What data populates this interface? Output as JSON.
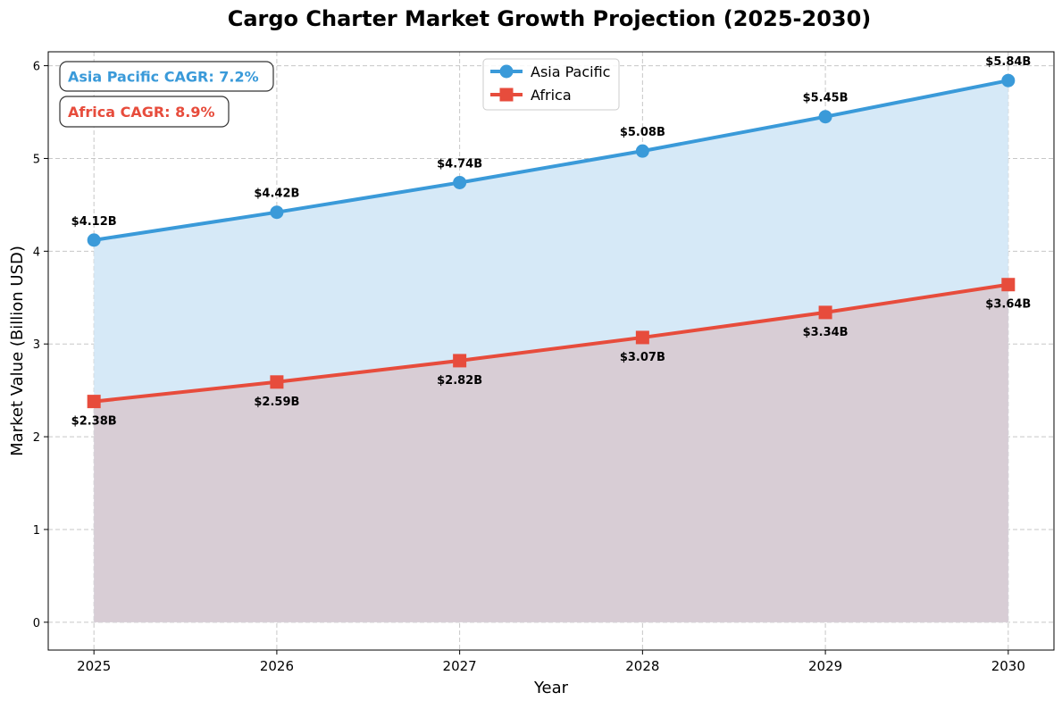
{
  "chart_data": {
    "type": "line",
    "title": "Cargo Charter Market Growth Projection (2025-2030)",
    "xlabel": "Year",
    "ylabel": "Market Value (Billion USD)",
    "categories": [
      "2025",
      "2026",
      "2027",
      "2028",
      "2029",
      "2030"
    ],
    "yticks": [
      "0",
      "1",
      "2",
      "3",
      "4",
      "5",
      "6"
    ],
    "ylim": [
      -0.3,
      6.15
    ],
    "xlim": [
      -0.25,
      5.25
    ],
    "grid": true,
    "legend_position": "top-center",
    "series": [
      {
        "name": "Asia Pacific",
        "values": [
          4.12,
          4.42,
          4.74,
          5.08,
          5.45,
          5.84
        ],
        "labels": [
          "$4.12B",
          "$4.42B",
          "$4.74B",
          "$5.08B",
          "$5.45B",
          "$5.84B"
        ],
        "color": "#3a9ad9",
        "fill_color": "#d6e9f7",
        "marker": "circle",
        "label_side": "above"
      },
      {
        "name": "Africa",
        "values": [
          2.38,
          2.59,
          2.82,
          3.07,
          3.34,
          3.64
        ],
        "labels": [
          "$2.38B",
          "$2.59B",
          "$2.82B",
          "$3.07B",
          "$3.34B",
          "$3.64B"
        ],
        "color": "#e74c3c",
        "fill_color": "#d8c8cf",
        "marker": "square",
        "label_side": "below"
      }
    ],
    "annotations": [
      {
        "text": "Asia Pacific CAGR: 7.2%",
        "color": "#3a9ad9"
      },
      {
        "text": "Africa CAGR: 8.9%",
        "color": "#e74c3c"
      }
    ]
  }
}
